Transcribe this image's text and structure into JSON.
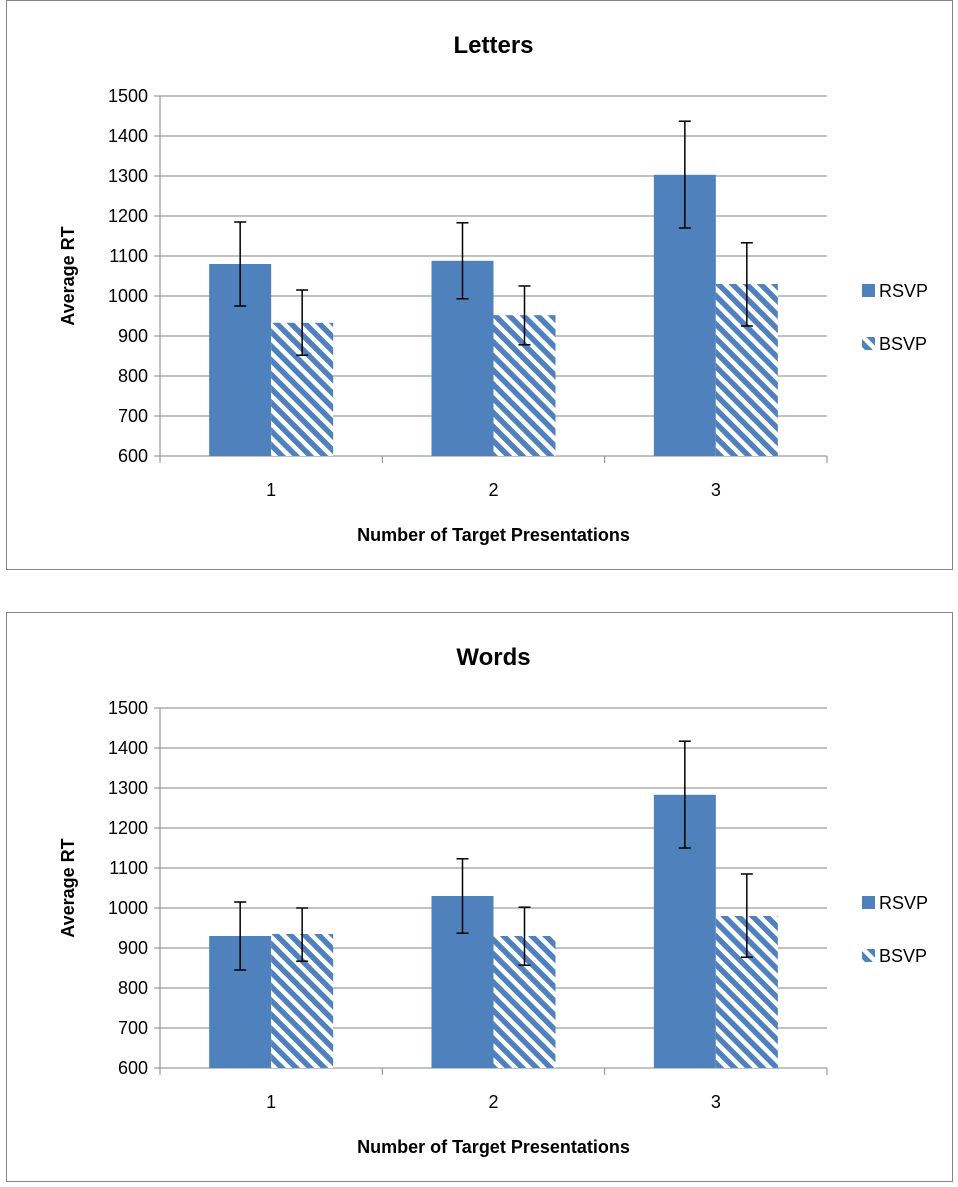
{
  "chart_data": [
    {
      "type": "bar",
      "title": "Letters",
      "xlabel": "Number of Target Presentations",
      "ylabel": "Average RT",
      "categories": [
        "1",
        "2",
        "3"
      ],
      "ylim": [
        600,
        1500
      ],
      "ytick_step": 100,
      "yticks": [
        "600",
        "700",
        "800",
        "900",
        "1000",
        "1100",
        "1200",
        "1300",
        "1400",
        "1500"
      ],
      "grid": true,
      "legend": "right",
      "series": [
        {
          "name": "RSVP",
          "style": "solid",
          "color": "#4f81bd",
          "values": [
            1080,
            1088,
            1303
          ],
          "error": [
            [
              975,
              1185
            ],
            [
              993,
              1183
            ],
            [
              1170,
              1437
            ]
          ]
        },
        {
          "name": "BSVP",
          "style": "striped",
          "color": "#4f81bd",
          "values": [
            933,
            952,
            1030
          ],
          "error": [
            [
              852,
              1015
            ],
            [
              878,
              1025
            ],
            [
              925,
              1133
            ]
          ]
        }
      ]
    },
    {
      "type": "bar",
      "title": "Words",
      "xlabel": "Number of Target Presentations",
      "ylabel": "Average RT",
      "categories": [
        "1",
        "2",
        "3"
      ],
      "ylim": [
        600,
        1500
      ],
      "ytick_step": 100,
      "yticks": [
        "600",
        "700",
        "800",
        "900",
        "1000",
        "1100",
        "1200",
        "1300",
        "1400",
        "1500"
      ],
      "grid": true,
      "legend": "right",
      "series": [
        {
          "name": "RSVP",
          "style": "solid",
          "color": "#4f81bd",
          "values": [
            930,
            1030,
            1283
          ],
          "error": [
            [
              845,
              1015
            ],
            [
              937,
              1123
            ],
            [
              1150,
              1417
            ]
          ]
        },
        {
          "name": "BSVP",
          "style": "striped",
          "color": "#4f81bd",
          "values": [
            935,
            930,
            980
          ],
          "error": [
            [
              867,
              1000
            ],
            [
              857,
              1002
            ],
            [
              877,
              1085
            ]
          ]
        }
      ]
    }
  ]
}
